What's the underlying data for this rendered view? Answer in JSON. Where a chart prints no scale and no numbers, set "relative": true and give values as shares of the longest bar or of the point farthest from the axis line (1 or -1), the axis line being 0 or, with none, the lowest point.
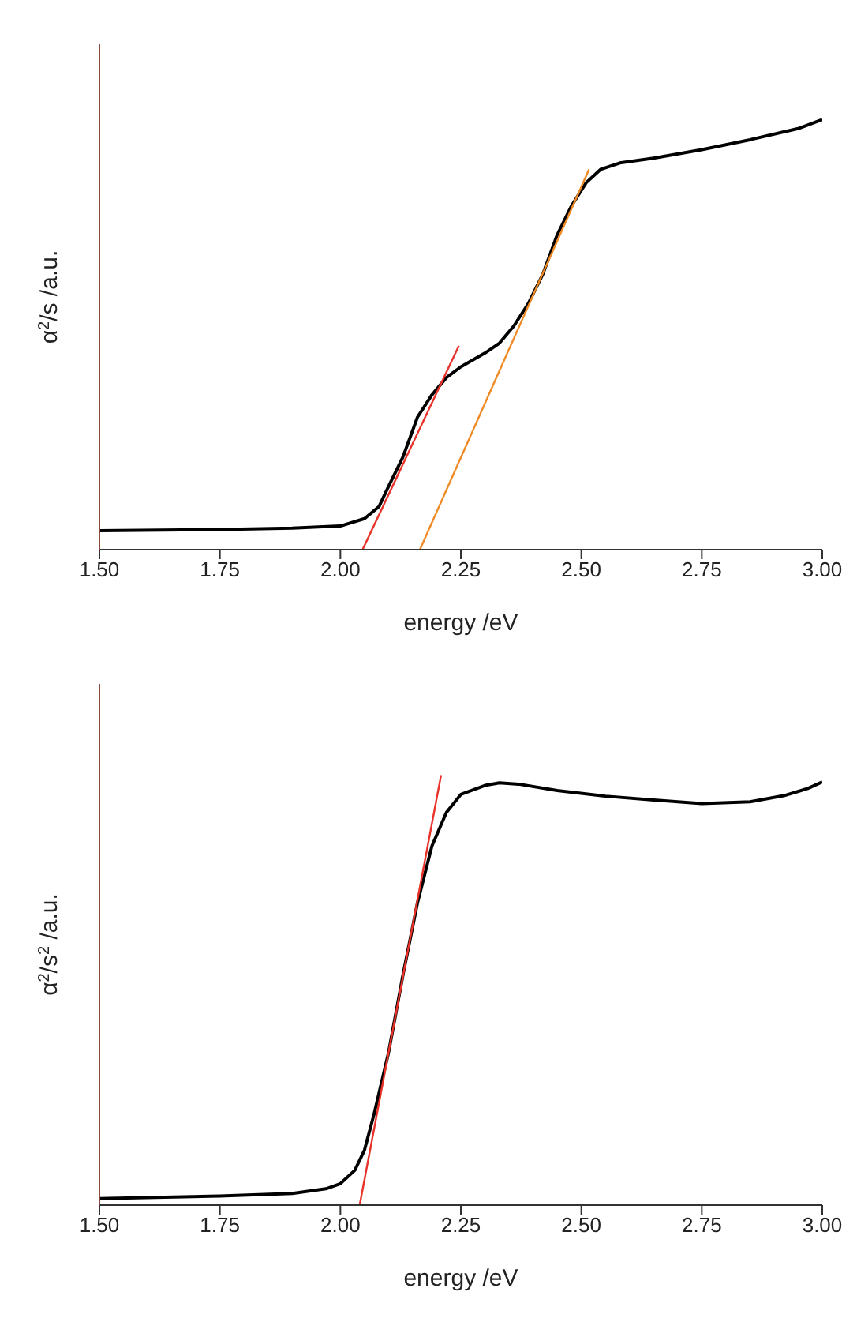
{
  "chart_data": [
    {
      "type": "line",
      "relative": true,
      "xlabel": "energy /eV",
      "ylabel": "α$^{2}$/s /a.u.",
      "tick_labels": "x",
      "xlim": [
        1.5,
        3.0
      ],
      "xticks": [
        {
          "value": 1.5,
          "label": "1.50"
        },
        {
          "value": 1.75,
          "label": "1.75"
        },
        {
          "value": 2.0,
          "label": "2.00"
        },
        {
          "value": 2.25,
          "label": "2.25"
        },
        {
          "value": 2.5,
          "label": "2.50"
        },
        {
          "value": 2.75,
          "label": "2.75"
        },
        {
          "value": 3.0,
          "label": "3.00"
        }
      ],
      "series": [
        {
          "color": "#000000",
          "x": [
            1.5,
            1.75,
            1.9,
            2.0,
            2.05,
            2.08,
            2.1,
            2.13,
            2.16,
            2.19,
            2.22,
            2.25,
            2.3,
            2.33,
            2.36,
            2.39,
            2.42,
            2.45,
            2.48,
            2.51,
            2.54,
            2.58,
            2.65,
            2.75,
            2.85,
            2.95,
            3.0
          ],
          "values": [
            0.044,
            0.047,
            0.05,
            0.055,
            0.072,
            0.1,
            0.147,
            0.216,
            0.308,
            0.36,
            0.4,
            0.425,
            0.457,
            0.48,
            0.52,
            0.572,
            0.64,
            0.732,
            0.8,
            0.853,
            0.884,
            0.899,
            0.91,
            0.93,
            0.953,
            0.979,
            1.0
          ]
        },
        {
          "type": "line",
          "color": "#e8322a",
          "x": [
            2.046,
            2.246
          ],
          "values": [
            0,
            0.474
          ]
        },
        {
          "type": "line",
          "color": "#f08a24",
          "x": [
            2.165,
            2.516
          ],
          "values": [
            0,
            0.884
          ]
        }
      ]
    },
    {
      "type": "line",
      "relative": true,
      "xlabel": "energy /eV",
      "ylabel": "α$^{2}$/s$^{2}$ /a.u.",
      "tick_labels": "x",
      "xlim": [
        1.5,
        3.0
      ],
      "xticks": [
        {
          "value": 1.5,
          "label": "1.50"
        },
        {
          "value": 1.75,
          "label": "1.75"
        },
        {
          "value": 2.0,
          "label": "2.00"
        },
        {
          "value": 2.25,
          "label": "2.25"
        },
        {
          "value": 2.5,
          "label": "2.50"
        },
        {
          "value": 2.75,
          "label": "2.75"
        },
        {
          "value": 3.0,
          "label": "3.00"
        }
      ],
      "series": [
        {
          "color": "#000000",
          "x": [
            1.5,
            1.75,
            1.9,
            1.97,
            2.0,
            2.03,
            2.05,
            2.07,
            2.1,
            2.13,
            2.16,
            2.19,
            2.22,
            2.25,
            2.3,
            2.33,
            2.37,
            2.45,
            2.55,
            2.65,
            2.75,
            2.85,
            2.92,
            2.97,
            3.0
          ],
          "values": [
            0.015,
            0.021,
            0.027,
            0.038,
            0.05,
            0.081,
            0.128,
            0.212,
            0.355,
            0.536,
            0.703,
            0.835,
            0.913,
            0.955,
            0.976,
            0.982,
            0.979,
            0.964,
            0.951,
            0.942,
            0.934,
            0.938,
            0.952,
            0.969,
            0.984
          ]
        },
        {
          "type": "line",
          "color": "#e8322a",
          "x": [
            2.04,
            2.209
          ],
          "values": [
            0,
            1
          ]
        }
      ]
    }
  ]
}
